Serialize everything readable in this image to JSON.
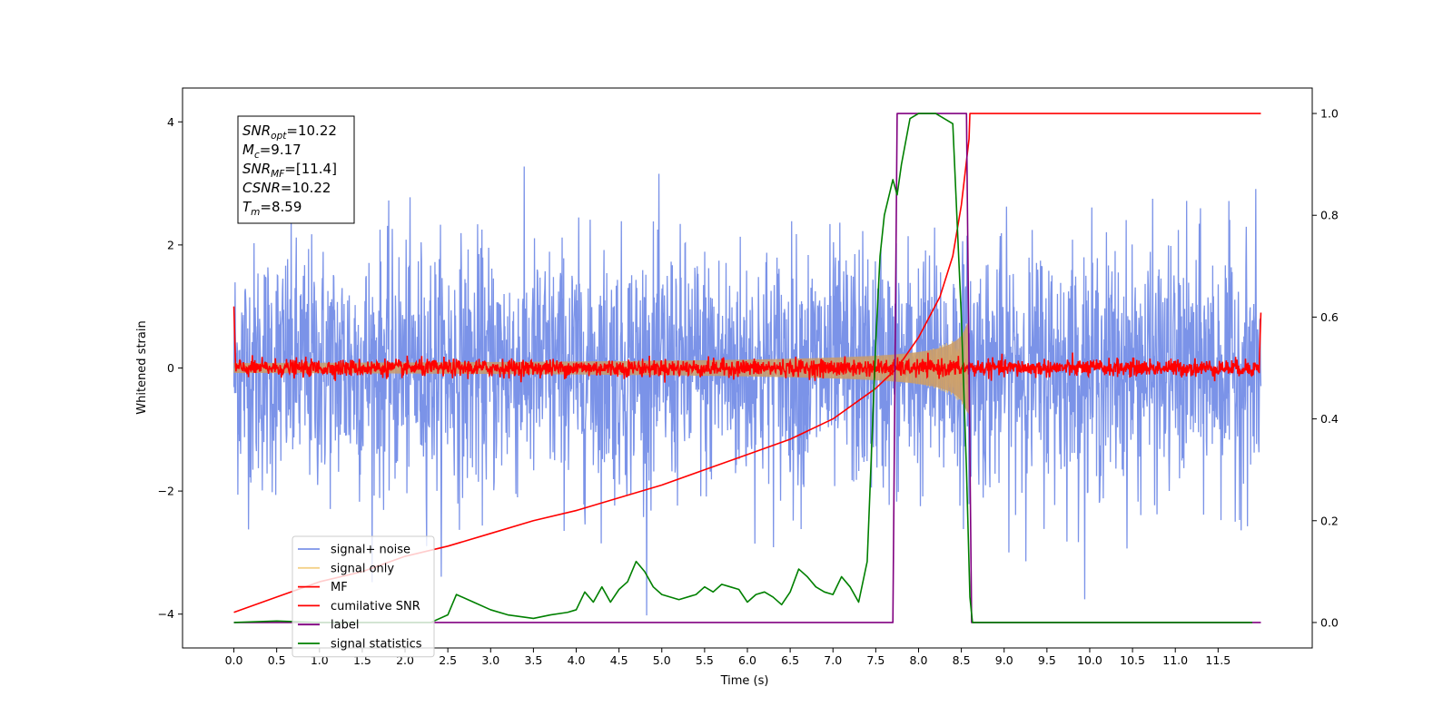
{
  "chart_data": {
    "type": "line",
    "title": "",
    "xlabel": "Time (s)",
    "ylabel": "Whitened strain",
    "y2label": "",
    "xlim": [
      -0.6,
      12.6
    ],
    "ylim": [
      -4.55,
      4.55
    ],
    "y2lim": [
      -0.05,
      1.05
    ],
    "xticks": [
      0.0,
      0.5,
      1.0,
      1.5,
      2.0,
      2.5,
      3.0,
      3.5,
      4.0,
      4.5,
      5.0,
      5.5,
      6.0,
      6.5,
      7.0,
      7.5,
      8.0,
      8.5,
      9.0,
      9.5,
      10.0,
      10.5,
      11.0,
      11.5
    ],
    "yticks": [
      -4,
      -2,
      0,
      2,
      4
    ],
    "y2ticks": [
      0.0,
      0.2,
      0.4,
      0.6,
      0.8,
      1.0
    ],
    "grid": false,
    "legend_position": "lower-left",
    "annotation": {
      "lines": [
        {
          "base": "SNR",
          "sub": "opt",
          "value": "=10.22"
        },
        {
          "base": "M",
          "sub": "c",
          "value": "=9.17"
        },
        {
          "base": "SNR",
          "sub": "MF",
          "value": "=[11.4]"
        },
        {
          "base": "CSNR",
          "sub": "",
          "value": "=10.22"
        },
        {
          "base": "T",
          "sub": "m",
          "value": "=8.59"
        }
      ]
    },
    "series": [
      {
        "name": "signal+ noise",
        "color": "#7b93e8",
        "axis": "left",
        "kind": "noise",
        "x_range": [
          0.0,
          12.0
        ],
        "y_std": 1.0
      },
      {
        "name": "signal only",
        "color": "#f0c66a",
        "axis": "left",
        "kind": "chirp",
        "x_range": [
          0.0,
          8.59
        ],
        "peak_amplitude": 0.9
      },
      {
        "name": "MF",
        "color": "#ff0000",
        "axis": "left",
        "kind": "noise",
        "x_range": [
          0.0,
          12.0
        ],
        "y_std": 0.07
      },
      {
        "name": "cumilative SNR",
        "color": "#ff0000",
        "axis": "right",
        "x": [
          0.0,
          0.5,
          1.0,
          1.5,
          2.0,
          2.5,
          3.0,
          3.5,
          4.0,
          4.5,
          5.0,
          5.5,
          6.0,
          6.5,
          7.0,
          7.5,
          7.75,
          8.0,
          8.25,
          8.4,
          8.5,
          8.59,
          8.6,
          9.0,
          10.0,
          11.0,
          12.0
        ],
        "y": [
          0.02,
          0.05,
          0.08,
          0.1,
          0.13,
          0.15,
          0.175,
          0.2,
          0.22,
          0.245,
          0.27,
          0.3,
          0.33,
          0.36,
          0.4,
          0.46,
          0.5,
          0.56,
          0.64,
          0.72,
          0.82,
          0.95,
          1.0,
          1.0,
          1.0,
          1.0,
          1.0
        ]
      },
      {
        "name": "label",
        "color": "#800080",
        "axis": "right",
        "x": [
          0.0,
          7.7,
          7.75,
          8.56,
          8.62,
          12.0
        ],
        "y": [
          0.0,
          0.0,
          1.0,
          1.0,
          0.0,
          0.0
        ]
      },
      {
        "name": "signal statistics",
        "color": "#008000",
        "axis": "right",
        "x": [
          0.0,
          0.5,
          1.0,
          1.5,
          2.0,
          2.3,
          2.5,
          2.6,
          2.8,
          3.0,
          3.2,
          3.5,
          3.7,
          3.9,
          4.0,
          4.1,
          4.2,
          4.3,
          4.4,
          4.5,
          4.6,
          4.7,
          4.8,
          4.9,
          5.0,
          5.2,
          5.4,
          5.5,
          5.6,
          5.7,
          5.8,
          5.9,
          6.0,
          6.1,
          6.2,
          6.3,
          6.4,
          6.5,
          6.6,
          6.7,
          6.8,
          6.9,
          7.0,
          7.1,
          7.2,
          7.3,
          7.4,
          7.5,
          7.55,
          7.6,
          7.7,
          7.75,
          7.8,
          7.9,
          8.0,
          8.2,
          8.4,
          8.5,
          8.56,
          8.6,
          8.63,
          9.0,
          10.0,
          11.0,
          11.9
        ],
        "y": [
          0.0,
          0.003,
          0.0,
          0.0,
          0.0,
          0.0,
          0.015,
          0.055,
          0.04,
          0.025,
          0.015,
          0.008,
          0.015,
          0.02,
          0.025,
          0.06,
          0.04,
          0.07,
          0.04,
          0.065,
          0.08,
          0.12,
          0.1,
          0.07,
          0.055,
          0.045,
          0.055,
          0.07,
          0.06,
          0.075,
          0.07,
          0.065,
          0.04,
          0.055,
          0.06,
          0.05,
          0.035,
          0.06,
          0.105,
          0.09,
          0.07,
          0.06,
          0.055,
          0.09,
          0.07,
          0.04,
          0.12,
          0.55,
          0.72,
          0.8,
          0.87,
          0.84,
          0.9,
          0.99,
          1.0,
          1.0,
          0.98,
          0.6,
          0.3,
          0.05,
          0.0,
          0.0,
          0.0,
          0.0,
          0.0
        ]
      }
    ]
  }
}
